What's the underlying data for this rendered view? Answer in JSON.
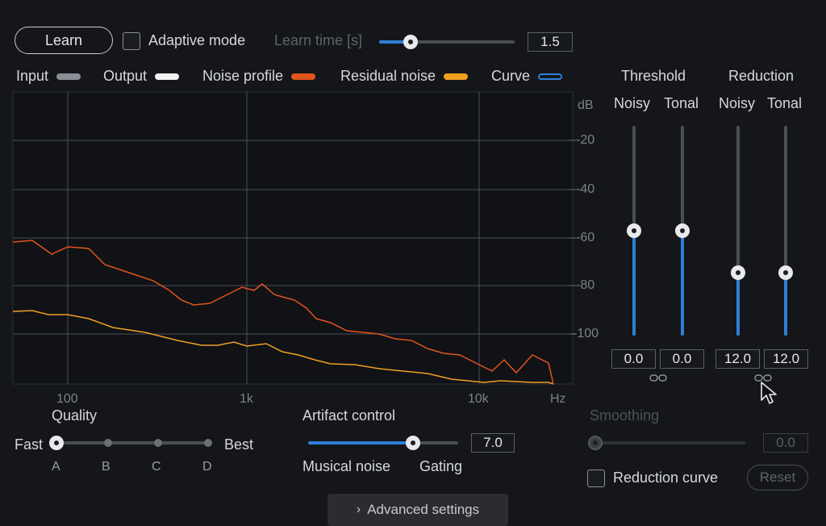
{
  "header": {
    "learn_label": "Learn",
    "adaptive_label": "Adaptive mode",
    "learn_time_label": "Learn time [s]",
    "learn_time_value": "1.5",
    "learn_time_fraction": 0.23
  },
  "legend": [
    {
      "label": "Input",
      "color": "#8a8d94"
    },
    {
      "label": "Output",
      "color": "#f2f2f2"
    },
    {
      "label": "Noise profile",
      "color": "#e2541c"
    },
    {
      "label": "Residual noise",
      "color": "#f0a020"
    },
    {
      "label": "Curve",
      "color": "#2e7fd6"
    }
  ],
  "spectrum": {
    "y_unit": "dB",
    "y_ticks": [
      "-20",
      "-40",
      "-60",
      "-80",
      "-100"
    ],
    "x_ticks": [
      "100",
      "1k",
      "10k"
    ],
    "x_unit": "Hz"
  },
  "threshold": {
    "title": "Threshold",
    "noisy_label": "Noisy",
    "tonal_label": "Tonal",
    "noisy_value": "0.0",
    "tonal_value": "0.0",
    "noisy_fraction": 0.5,
    "tonal_fraction": 0.5
  },
  "reduction": {
    "title": "Reduction",
    "noisy_label": "Noisy",
    "tonal_label": "Tonal",
    "noisy_value": "12.0",
    "tonal_value": "12.0",
    "noisy_fraction": 0.3,
    "tonal_fraction": 0.3
  },
  "quality": {
    "title": "Quality",
    "fast_label": "Fast",
    "best_label": "Best",
    "options": [
      "A",
      "B",
      "C",
      "D"
    ],
    "selected": "A"
  },
  "artifact": {
    "title": "Artifact control",
    "value": "7.0",
    "fraction": 0.7,
    "left_label": "Musical noise",
    "right_label": "Gating"
  },
  "smoothing": {
    "title": "Smoothing",
    "value": "0.0"
  },
  "reduction_curve_label": "Reduction curve",
  "reset_label": "Reset",
  "advanced_label": "Advanced settings"
}
